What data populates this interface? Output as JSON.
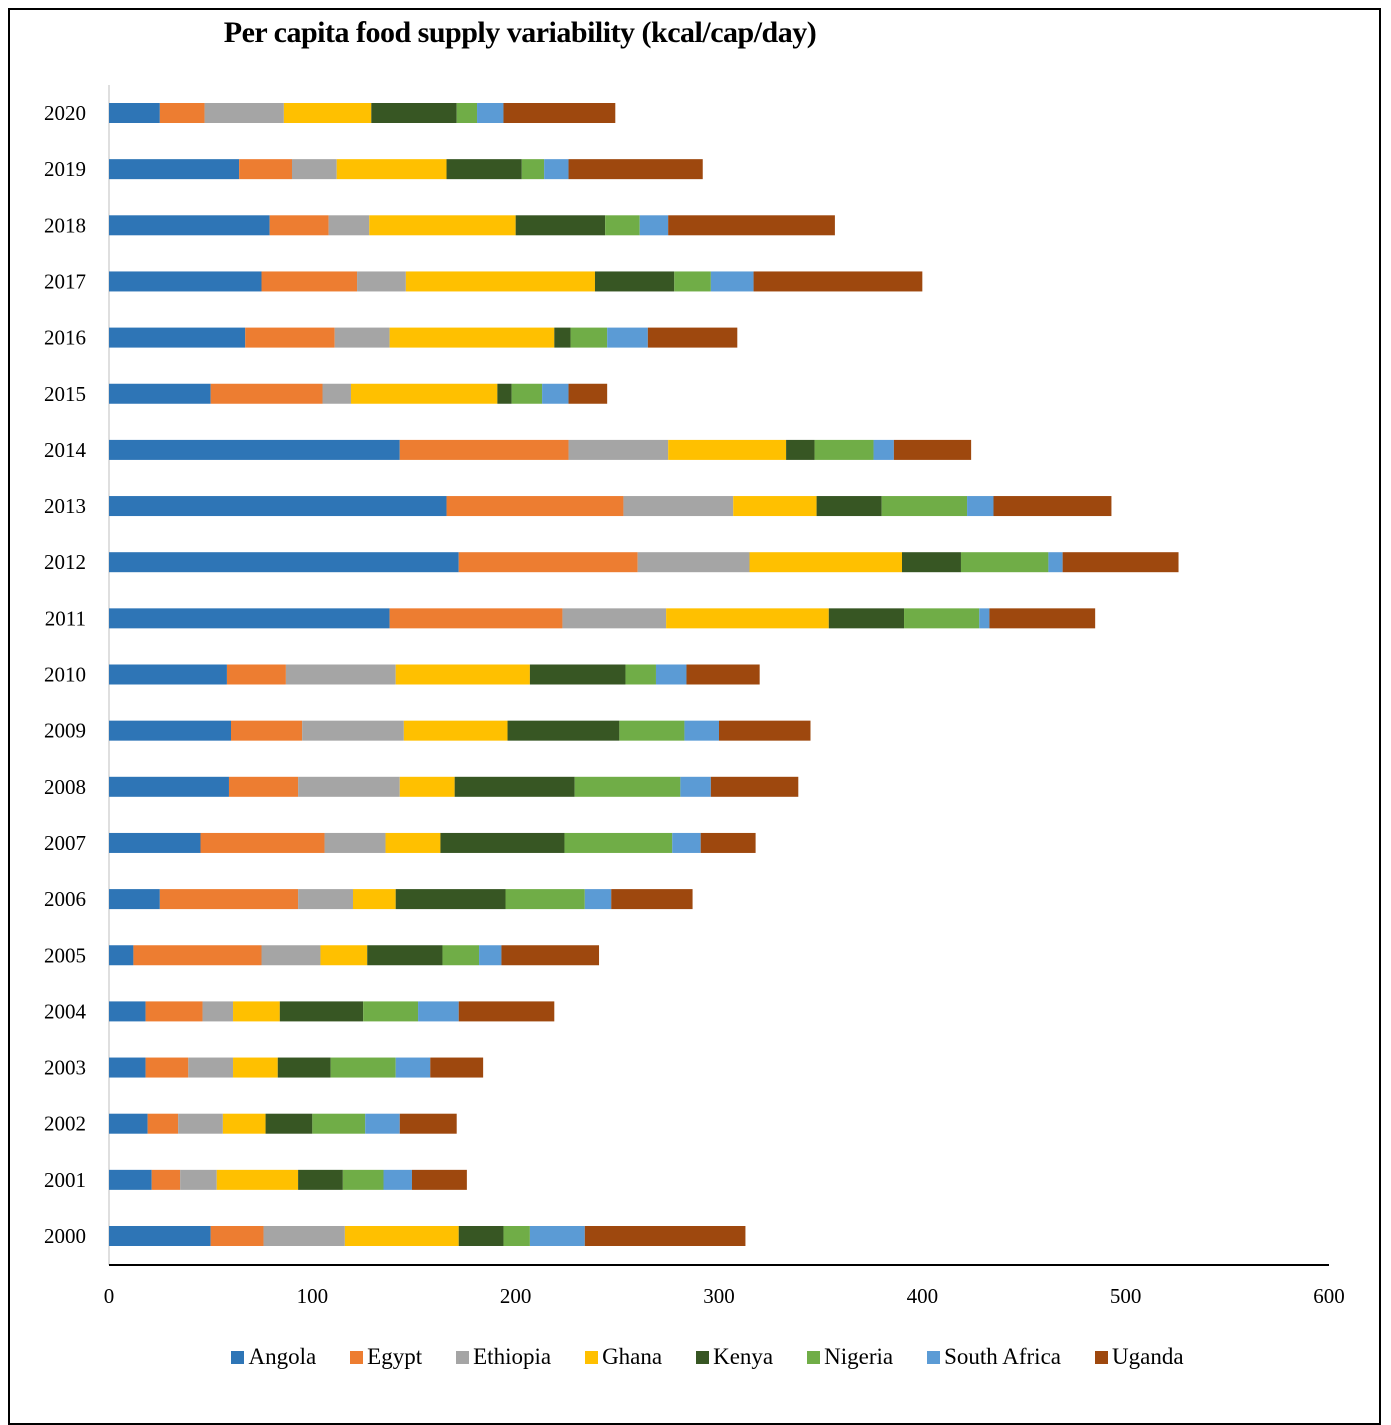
{
  "chart_data": {
    "type": "bar",
    "orientation": "horizontal",
    "stacked": true,
    "title": "Per capita food supply variability  (kcal/cap/day)",
    "xlim": [
      0,
      600
    ],
    "xticks": [
      "0",
      "100",
      "200",
      "300",
      "400",
      "500",
      "600"
    ],
    "grid": false,
    "legend_position": "bottom",
    "categories": [
      "2020",
      "2019",
      "2018",
      "2017",
      "2016",
      "2015",
      "2014",
      "2013",
      "2012",
      "2011",
      "2010",
      "2009",
      "2008",
      "2007",
      "2006",
      "2005",
      "2004",
      "2003",
      "2002",
      "2001",
      "2000"
    ],
    "series": [
      {
        "name": "Angola",
        "color": "#2E75B6",
        "values": [
          25,
          64,
          79,
          75,
          67,
          50,
          143,
          166,
          172,
          138,
          58,
          60,
          59,
          45,
          25,
          12,
          18,
          18,
          19,
          21,
          50
        ]
      },
      {
        "name": "Egypt",
        "color": "#ED7D31",
        "values": [
          22,
          26,
          29,
          47,
          44,
          55,
          83,
          87,
          88,
          85,
          29,
          35,
          34,
          61,
          68,
          63,
          28,
          21,
          15,
          14,
          26
        ]
      },
      {
        "name": "Ethiopia",
        "color": "#A5A5A5",
        "values": [
          39,
          22,
          20,
          24,
          27,
          14,
          49,
          54,
          55,
          51,
          54,
          50,
          50,
          30,
          27,
          29,
          15,
          22,
          22,
          18,
          40
        ]
      },
      {
        "name": "Ghana",
        "color": "#FFC000",
        "values": [
          43,
          54,
          72,
          93,
          81,
          72,
          58,
          41,
          75,
          80,
          66,
          51,
          27,
          27,
          21,
          23,
          23,
          22,
          21,
          40,
          56
        ]
      },
      {
        "name": "Kenya",
        "color": "#375623",
        "values": [
          42,
          37,
          44,
          39,
          8,
          7,
          14,
          32,
          29,
          37,
          47,
          55,
          59,
          61,
          54,
          37,
          41,
          26,
          23,
          22,
          22
        ]
      },
      {
        "name": "Nigeria",
        "color": "#70AD47",
        "values": [
          10,
          11,
          17,
          18,
          18,
          15,
          29,
          42,
          43,
          37,
          15,
          32,
          52,
          53,
          39,
          18,
          27,
          32,
          26,
          20,
          13
        ]
      },
      {
        "name": "South Africa",
        "color": "#5B9BD5",
        "values": [
          13,
          12,
          14,
          21,
          20,
          13,
          10,
          13,
          7,
          5,
          15,
          17,
          15,
          14,
          13,
          11,
          20,
          17,
          17,
          14,
          27
        ]
      },
      {
        "name": "Uganda",
        "color": "#9E480E",
        "values": [
          55,
          66,
          82,
          83,
          44,
          19,
          38,
          58,
          57,
          52,
          36,
          45,
          43,
          27,
          40,
          48,
          47,
          26,
          28,
          27,
          79
        ]
      }
    ]
  }
}
